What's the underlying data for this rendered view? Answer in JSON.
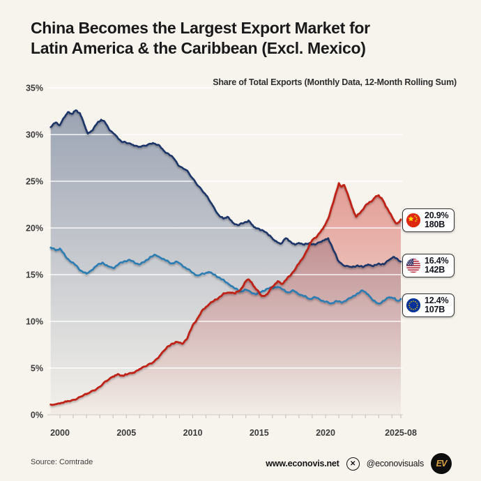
{
  "header": {
    "title_line1": "China Becomes the Largest Export Market for",
    "title_line2": "Latin America & the Caribbean (Excl. Mexico)",
    "subtitle": "Share of Total Exports (Monthly Data, 12-Month Rolling Sum)"
  },
  "legend": [
    {
      "name": "China",
      "flag": "china-flag",
      "share": "20.9%",
      "value": "180B"
    },
    {
      "name": "United States",
      "flag": "us-flag",
      "share": "16.4%",
      "value": "142B"
    },
    {
      "name": "European Union",
      "flag": "eu-flag",
      "share": "12.4%",
      "value": "107B"
    }
  ],
  "footer": {
    "source": "Source: Comtrade",
    "website": "www.econovis.net",
    "x_icon": "✕",
    "social_handle": "@econovisuals",
    "logo_text": "EV"
  },
  "colors": {
    "background": "#F7F4ED",
    "china_line": "#BE2318",
    "us_line": "#1C3667",
    "eu_line": "#2B7CB3",
    "china_flag_red": "#DE2910",
    "eu_flag_blue": "#003399",
    "logo_gold": "#D9A13F"
  },
  "chart_data": {
    "type": "line",
    "title": "China Becomes the Largest Export Market for Latin America & the Caribbean (Excl. Mexico)",
    "subtitle": "Share of Total Exports (Monthly Data, 12-Month Rolling Sum)",
    "xlabel": "",
    "ylabel": "Share of Total Exports (%)",
    "x_range": [
      1999.2,
      2025.67
    ],
    "ylim": [
      0,
      35
    ],
    "grid": "horizontal-only",
    "legend_position": "right-badges",
    "y_ticks": [
      {
        "label": "0%",
        "value": 0
      },
      {
        "label": "5%",
        "value": 5
      },
      {
        "label": "10%",
        "value": 10
      },
      {
        "label": "15%",
        "value": 15
      },
      {
        "label": "20%",
        "value": 20
      },
      {
        "label": "25%",
        "value": 25
      },
      {
        "label": "30%",
        "value": 30
      },
      {
        "label": "35%",
        "value": 35
      }
    ],
    "x_ticks": [
      {
        "label": "2000",
        "value": 2000
      },
      {
        "label": "2005",
        "value": 2005
      },
      {
        "label": "2010",
        "value": 2010
      },
      {
        "label": "2015",
        "value": 2015
      },
      {
        "label": "2020",
        "value": 2020
      },
      {
        "label": "2025-08",
        "value": 2025.67
      }
    ],
    "series": [
      {
        "name": "United States",
        "final_share_pct": 16.4,
        "final_value_usd": "142B",
        "color": "#1C3667",
        "area_fill": true,
        "points": [
          [
            1999.3,
            30.8
          ],
          [
            1999.7,
            31.3
          ],
          [
            2000,
            31.0
          ],
          [
            2000.3,
            31.8
          ],
          [
            2000.6,
            32.4
          ],
          [
            2000.9,
            32.2
          ],
          [
            2001.2,
            32.6
          ],
          [
            2001.5,
            32.3
          ],
          [
            2001.8,
            31.2
          ],
          [
            2002.1,
            30.1
          ],
          [
            2002.4,
            30.4
          ],
          [
            2002.8,
            31.2
          ],
          [
            2003.1,
            31.6
          ],
          [
            2003.4,
            31.3
          ],
          [
            2003.8,
            30.4
          ],
          [
            2004.2,
            29.9
          ],
          [
            2004.6,
            29.3
          ],
          [
            2005,
            29.1
          ],
          [
            2005.5,
            28.9
          ],
          [
            2006,
            28.7
          ],
          [
            2006.5,
            28.8
          ],
          [
            2007,
            29.1
          ],
          [
            2007.4,
            28.9
          ],
          [
            2007.8,
            28.3
          ],
          [
            2008.2,
            27.9
          ],
          [
            2008.6,
            27.4
          ],
          [
            2009,
            26.6
          ],
          [
            2009.5,
            26.2
          ],
          [
            2010,
            25.3
          ],
          [
            2010.5,
            24.4
          ],
          [
            2011,
            23.5
          ],
          [
            2011.5,
            22.4
          ],
          [
            2012,
            21.3
          ],
          [
            2012.3,
            21.0
          ],
          [
            2012.6,
            21.2
          ],
          [
            2013,
            20.6
          ],
          [
            2013.4,
            20.3
          ],
          [
            2013.8,
            20.5
          ],
          [
            2014.2,
            20.8
          ],
          [
            2014.6,
            20.1
          ],
          [
            2015,
            19.9
          ],
          [
            2015.4,
            19.6
          ],
          [
            2015.8,
            19.2
          ],
          [
            2016.2,
            18.6
          ],
          [
            2016.6,
            18.3
          ],
          [
            2017,
            18.9
          ],
          [
            2017.3,
            18.6
          ],
          [
            2017.7,
            18.2
          ],
          [
            2018,
            18.4
          ],
          [
            2018.4,
            18.2
          ],
          [
            2018.8,
            18.4
          ],
          [
            2019.2,
            18.2
          ],
          [
            2019.6,
            18.5
          ],
          [
            2020,
            18.8
          ],
          [
            2020.2,
            18.9
          ],
          [
            2020.6,
            17.6
          ],
          [
            2021,
            16.4
          ],
          [
            2021.5,
            15.9
          ],
          [
            2022,
            15.8
          ],
          [
            2022.4,
            16.0
          ],
          [
            2022.8,
            15.8
          ],
          [
            2023.2,
            16.1
          ],
          [
            2023.6,
            15.9
          ],
          [
            2024,
            16.2
          ],
          [
            2024.4,
            16.1
          ],
          [
            2024.8,
            16.6
          ],
          [
            2025.1,
            16.9
          ],
          [
            2025.4,
            16.7
          ],
          [
            2025.67,
            16.4
          ]
        ]
      },
      {
        "name": "European Union",
        "final_share_pct": 12.4,
        "final_value_usd": "107B",
        "color": "#2B7CB3",
        "area_fill": false,
        "points": [
          [
            1999.3,
            17.9
          ],
          [
            1999.7,
            17.6
          ],
          [
            2000,
            17.8
          ],
          [
            2000.4,
            17.0
          ],
          [
            2000.8,
            16.4
          ],
          [
            2001.2,
            16.0
          ],
          [
            2001.6,
            15.4
          ],
          [
            2002,
            15.1
          ],
          [
            2002.4,
            15.5
          ],
          [
            2002.8,
            16.0
          ],
          [
            2003.2,
            16.3
          ],
          [
            2003.6,
            15.9
          ],
          [
            2004,
            15.7
          ],
          [
            2004.4,
            16.1
          ],
          [
            2004.8,
            16.4
          ],
          [
            2005.2,
            16.6
          ],
          [
            2005.6,
            16.3
          ],
          [
            2006,
            16.1
          ],
          [
            2006.4,
            16.4
          ],
          [
            2006.8,
            16.9
          ],
          [
            2007.2,
            17.1
          ],
          [
            2007.6,
            16.8
          ],
          [
            2008,
            16.5
          ],
          [
            2008.4,
            16.2
          ],
          [
            2008.8,
            16.4
          ],
          [
            2009.2,
            16.0
          ],
          [
            2009.6,
            15.6
          ],
          [
            2010,
            15.2
          ],
          [
            2010.4,
            14.9
          ],
          [
            2010.8,
            15.1
          ],
          [
            2011.2,
            15.3
          ],
          [
            2011.6,
            15.0
          ],
          [
            2012,
            14.7
          ],
          [
            2012.4,
            14.3
          ],
          [
            2012.8,
            13.9
          ],
          [
            2013.2,
            13.5
          ],
          [
            2013.6,
            13.2
          ],
          [
            2014,
            13.4
          ],
          [
            2014.4,
            13.1
          ],
          [
            2014.8,
            12.9
          ],
          [
            2015.2,
            13.2
          ],
          [
            2015.6,
            13.5
          ],
          [
            2016,
            13.6
          ],
          [
            2016.4,
            13.7
          ],
          [
            2016.8,
            13.4
          ],
          [
            2017.2,
            13.1
          ],
          [
            2017.6,
            13.3
          ],
          [
            2018,
            12.9
          ],
          [
            2018.4,
            12.7
          ],
          [
            2018.8,
            12.4
          ],
          [
            2019.2,
            12.6
          ],
          [
            2019.6,
            12.3
          ],
          [
            2020,
            12.1
          ],
          [
            2020.4,
            11.9
          ],
          [
            2020.8,
            12.2
          ],
          [
            2021.2,
            12.0
          ],
          [
            2021.6,
            12.3
          ],
          [
            2022,
            12.6
          ],
          [
            2022.4,
            13.0
          ],
          [
            2022.8,
            13.3
          ],
          [
            2023.2,
            12.9
          ],
          [
            2023.6,
            12.2
          ],
          [
            2024,
            11.9
          ],
          [
            2024.4,
            12.2
          ],
          [
            2024.8,
            12.6
          ],
          [
            2025.2,
            12.5
          ],
          [
            2025.4,
            12.2
          ],
          [
            2025.67,
            12.4
          ]
        ]
      },
      {
        "name": "China",
        "final_share_pct": 20.9,
        "final_value_usd": "180B",
        "color": "#BE2318",
        "area_fill": true,
        "points": [
          [
            1999.3,
            1.1
          ],
          [
            2000,
            1.2
          ],
          [
            2000.5,
            1.4
          ],
          [
            2001,
            1.6
          ],
          [
            2001.5,
            1.9
          ],
          [
            2002,
            2.2
          ],
          [
            2002.5,
            2.6
          ],
          [
            2003,
            3.0
          ],
          [
            2003.5,
            3.6
          ],
          [
            2004,
            4.1
          ],
          [
            2004.3,
            4.3
          ],
          [
            2004.7,
            4.2
          ],
          [
            2005,
            4.3
          ],
          [
            2005.5,
            4.5
          ],
          [
            2006,
            4.9
          ],
          [
            2006.5,
            5.2
          ],
          [
            2007,
            5.6
          ],
          [
            2007.5,
            6.3
          ],
          [
            2008,
            7.1
          ],
          [
            2008.4,
            7.6
          ],
          [
            2008.8,
            7.8
          ],
          [
            2009.2,
            7.6
          ],
          [
            2009.6,
            8.2
          ],
          [
            2010,
            9.6
          ],
          [
            2010.4,
            10.4
          ],
          [
            2010.8,
            11.3
          ],
          [
            2011.2,
            11.8
          ],
          [
            2011.6,
            12.2
          ],
          [
            2012,
            12.6
          ],
          [
            2012.4,
            13.0
          ],
          [
            2012.8,
            13.1
          ],
          [
            2013.2,
            13.0
          ],
          [
            2013.6,
            13.4
          ],
          [
            2014,
            14.3
          ],
          [
            2014.2,
            14.5
          ],
          [
            2014.5,
            14.0
          ],
          [
            2014.8,
            13.4
          ],
          [
            2015.2,
            12.7
          ],
          [
            2015.6,
            12.9
          ],
          [
            2016,
            13.7
          ],
          [
            2016.4,
            14.3
          ],
          [
            2016.7,
            14.0
          ],
          [
            2017,
            14.4
          ],
          [
            2017.4,
            15.0
          ],
          [
            2017.8,
            15.8
          ],
          [
            2018.2,
            16.6
          ],
          [
            2018.6,
            17.6
          ],
          [
            2019,
            18.7
          ],
          [
            2019.4,
            19.2
          ],
          [
            2019.8,
            19.9
          ],
          [
            2020.2,
            21.0
          ],
          [
            2020.6,
            22.8
          ],
          [
            2021,
            24.8
          ],
          [
            2021.2,
            24.4
          ],
          [
            2021.4,
            24.6
          ],
          [
            2021.7,
            23.5
          ],
          [
            2022,
            22.2
          ],
          [
            2022.3,
            21.2
          ],
          [
            2022.6,
            21.6
          ],
          [
            2023,
            22.4
          ],
          [
            2023.4,
            22.8
          ],
          [
            2023.8,
            23.4
          ],
          [
            2024,
            23.5
          ],
          [
            2024.3,
            23.0
          ],
          [
            2024.6,
            22.2
          ],
          [
            2025,
            21.2
          ],
          [
            2025.3,
            20.5
          ],
          [
            2025.5,
            20.6
          ],
          [
            2025.67,
            20.9
          ]
        ]
      }
    ]
  }
}
